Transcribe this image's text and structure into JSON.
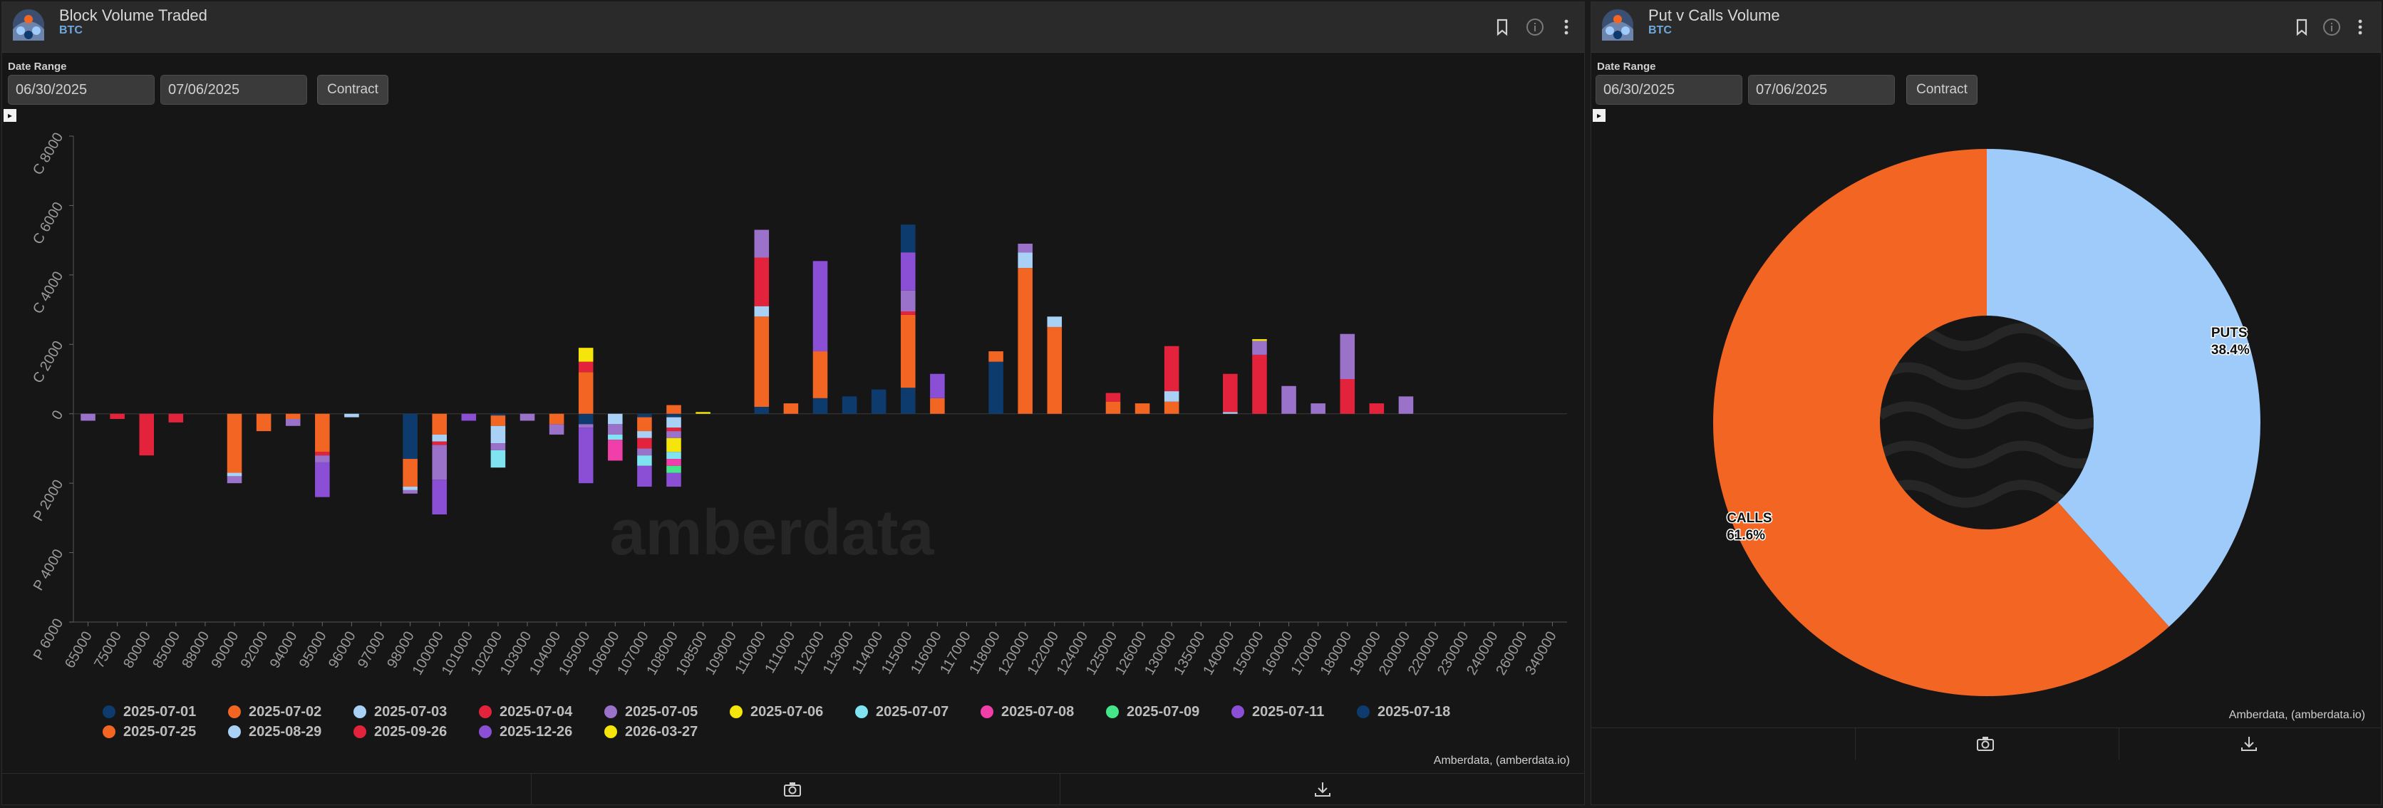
{
  "left_panel": {
    "title": "Block Volume Traded",
    "subtitle": "BTC",
    "date_range_label": "Date Range",
    "start_date": "06/30/2025",
    "end_date": "07/06/2025",
    "contract_button": "Contract",
    "credit": "Amberdata, (amberdata.io)",
    "watermark": "amberdata"
  },
  "right_panel": {
    "title": "Put v Calls Volume",
    "subtitle": "BTC",
    "date_range_label": "Date Range",
    "start_date": "06/30/2025",
    "end_date": "07/06/2025",
    "contract_button": "Contract",
    "credit": "Amberdata, (amberdata.io)"
  },
  "colors": {
    "header_bg": "#2a2a2a",
    "panel_bg": "#161616",
    "calls": "#f26522",
    "puts": "#9ecbfa",
    "accent_blue": "#6fa8dc"
  },
  "icons": [
    "amberdata-logo-icon",
    "bookmark-icon",
    "info-icon",
    "more-vert-icon",
    "camera-icon",
    "download-icon",
    "expand-icon"
  ],
  "chart_data": [
    {
      "type": "bar",
      "stacked": true,
      "title": "Block Volume Traded",
      "xlabel": "",
      "ylabel": "",
      "ylim": [
        -6000,
        8000
      ],
      "ytick_labels": [
        "P 6000",
        "P 4000",
        "P 2000",
        "0",
        "C 2000",
        "C 4000",
        "C 6000",
        "C 8000"
      ],
      "ytick_values": [
        -6000,
        -4000,
        -2000,
        0,
        2000,
        4000,
        6000,
        8000
      ],
      "categories": [
        "65000",
        "75000",
        "80000",
        "85000",
        "88000",
        "90000",
        "92000",
        "94000",
        "95000",
        "96000",
        "97000",
        "98000",
        "100000",
        "101000",
        "102000",
        "103000",
        "104000",
        "105000",
        "106000",
        "107000",
        "108000",
        "108500",
        "109000",
        "110000",
        "111000",
        "112000",
        "113000",
        "114000",
        "115000",
        "116000",
        "117000",
        "118000",
        "120000",
        "122000",
        "124000",
        "125000",
        "126000",
        "130000",
        "135000",
        "140000",
        "150000",
        "160000",
        "170000",
        "180000",
        "190000",
        "200000",
        "220000",
        "230000",
        "240000",
        "260000",
        "340000"
      ],
      "legend_position": "bottom",
      "series": [
        {
          "name": "2025-07-01",
          "color": "#0d3b6e",
          "values": [
            0,
            0,
            0,
            0,
            0,
            0,
            0,
            0,
            0,
            0,
            0,
            -1300,
            0,
            0,
            -50,
            0,
            0,
            -300,
            0,
            -100,
            -100,
            0,
            0,
            200,
            0,
            450,
            500,
            700,
            750,
            0,
            0,
            1500,
            0,
            0,
            0,
            0,
            0,
            0,
            0,
            0,
            0,
            0,
            0,
            0,
            0,
            0,
            0,
            0,
            0,
            0,
            0
          ]
        },
        {
          "name": "2025-07-02",
          "color": "#f26522",
          "values": [
            0,
            0,
            0,
            0,
            0,
            -1700,
            -500,
            -150,
            -1100,
            0,
            0,
            -800,
            -600,
            0,
            -300,
            0,
            -300,
            1200,
            0,
            -400,
            250,
            0,
            0,
            2600,
            0,
            1350,
            0,
            0,
            2100,
            450,
            0,
            300,
            4200,
            2500,
            0,
            350,
            300,
            350,
            0,
            0,
            0,
            0,
            0,
            0,
            0,
            0,
            0,
            0,
            0,
            0,
            0
          ]
        },
        {
          "name": "2025-07-03",
          "color": "#a9d0f5",
          "values": [
            0,
            0,
            0,
            0,
            0,
            -100,
            0,
            0,
            0,
            -100,
            0,
            -100,
            -200,
            0,
            -500,
            0,
            0,
            0,
            -300,
            -200,
            -300,
            0,
            0,
            300,
            0,
            0,
            0,
            0,
            0,
            0,
            0,
            0,
            450,
            300,
            0,
            0,
            0,
            300,
            0,
            50,
            0,
            0,
            0,
            0,
            0,
            0,
            0,
            0,
            0,
            0,
            0
          ]
        },
        {
          "name": "2025-07-04",
          "color": "#e3233b",
          "values": [
            0,
            -150,
            -1200,
            -250,
            0,
            0,
            0,
            0,
            -100,
            0,
            0,
            0,
            -100,
            0,
            0,
            0,
            0,
            300,
            0,
            -300,
            -100,
            0,
            0,
            1400,
            0,
            0,
            0,
            0,
            100,
            0,
            0,
            0,
            0,
            0,
            0,
            250,
            0,
            1300,
            0,
            1100,
            1700,
            0,
            0,
            1000,
            300,
            0,
            0,
            0,
            0,
            0,
            0
          ]
        },
        {
          "name": "2025-07-05",
          "color": "#9b72c9",
          "values": [
            -200,
            0,
            0,
            0,
            0,
            -200,
            0,
            -200,
            -200,
            0,
            0,
            -100,
            -1000,
            0,
            -200,
            -200,
            -300,
            -100,
            -300,
            -200,
            -200,
            0,
            0,
            800,
            0,
            0,
            0,
            0,
            600,
            0,
            0,
            0,
            250,
            0,
            0,
            0,
            0,
            0,
            0,
            0,
            400,
            800,
            300,
            1300,
            0,
            500,
            0,
            0,
            0,
            0,
            0
          ]
        },
        {
          "name": "2025-07-06",
          "color": "#f5e50a",
          "values": [
            0,
            0,
            0,
            0,
            0,
            0,
            0,
            0,
            0,
            0,
            0,
            0,
            0,
            0,
            0,
            0,
            0,
            400,
            0,
            0,
            -400,
            50,
            0,
            0,
            0,
            0,
            0,
            0,
            0,
            0,
            0,
            0,
            0,
            0,
            0,
            0,
            0,
            0,
            0,
            0,
            50,
            0,
            0,
            0,
            0,
            0,
            0,
            0,
            0,
            0,
            0
          ]
        },
        {
          "name": "2025-07-07",
          "color": "#7fe3f2",
          "values": [
            0,
            0,
            0,
            0,
            0,
            0,
            0,
            0,
            0,
            0,
            0,
            0,
            0,
            0,
            -500,
            0,
            0,
            0,
            -150,
            -300,
            -200,
            0,
            0,
            0,
            0,
            0,
            0,
            0,
            0,
            0,
            0,
            0,
            0,
            0,
            0,
            0,
            0,
            0,
            0,
            0,
            0,
            0,
            0,
            0,
            0,
            0,
            0,
            0,
            0,
            0,
            0
          ]
        },
        {
          "name": "2025-07-08",
          "color": "#f03fa9",
          "values": [
            0,
            0,
            0,
            0,
            0,
            0,
            0,
            0,
            0,
            0,
            0,
            0,
            0,
            0,
            0,
            0,
            0,
            0,
            -600,
            0,
            -200,
            0,
            0,
            0,
            0,
            0,
            0,
            0,
            0,
            0,
            0,
            0,
            0,
            0,
            0,
            0,
            0,
            0,
            0,
            0,
            0,
            0,
            0,
            0,
            0,
            0,
            0,
            0,
            0,
            0,
            0
          ]
        },
        {
          "name": "2025-07-09",
          "color": "#45e58a",
          "values": [
            0,
            0,
            0,
            0,
            0,
            0,
            0,
            0,
            0,
            0,
            0,
            0,
            0,
            0,
            0,
            0,
            0,
            0,
            0,
            0,
            -200,
            0,
            0,
            0,
            0,
            0,
            0,
            0,
            0,
            0,
            0,
            0,
            0,
            0,
            0,
            0,
            0,
            0,
            0,
            0,
            0,
            0,
            0,
            0,
            0,
            0,
            0,
            0,
            0,
            0,
            0
          ]
        },
        {
          "name": "2025-07-11",
          "color": "#8b4fd6",
          "values": [
            0,
            0,
            0,
            0,
            0,
            0,
            0,
            0,
            -1000,
            0,
            0,
            0,
            -1000,
            -200,
            0,
            0,
            0,
            -1600,
            0,
            -600,
            -400,
            0,
            0,
            0,
            0,
            2600,
            0,
            0,
            1100,
            700,
            0,
            0,
            0,
            0,
            0,
            0,
            0,
            0,
            0,
            0,
            0,
            0,
            0,
            0,
            0,
            0,
            0,
            0,
            0,
            0,
            0
          ]
        },
        {
          "name": "2025-07-18",
          "color": "#0d3b6e",
          "values": [
            0,
            0,
            0,
            0,
            0,
            0,
            0,
            0,
            0,
            0,
            0,
            0,
            0,
            0,
            0,
            0,
            0,
            0,
            0,
            0,
            0,
            0,
            0,
            0,
            0,
            0,
            0,
            0,
            800,
            0,
            0,
            0,
            0,
            0,
            0,
            0,
            0,
            0,
            0,
            0,
            0,
            0,
            0,
            0,
            0,
            0,
            0,
            0,
            0,
            0,
            0
          ]
        },
        {
          "name": "2025-07-25",
          "color": "#f26522",
          "values": [
            0,
            0,
            0,
            0,
            0,
            0,
            0,
            0,
            0,
            0,
            0,
            0,
            0,
            0,
            0,
            0,
            0,
            0,
            0,
            0,
            0,
            0,
            0,
            0,
            300,
            0,
            0,
            0,
            0,
            0,
            0,
            0,
            0,
            0,
            0,
            0,
            0,
            0,
            0,
            0,
            0,
            0,
            0,
            0,
            0,
            0,
            0,
            0,
            0,
            0,
            0
          ]
        },
        {
          "name": "2025-08-29",
          "color": "#a9d0f5",
          "values": [
            0,
            0,
            0,
            0,
            0,
            0,
            0,
            0,
            0,
            0,
            0,
            0,
            0,
            0,
            0,
            0,
            0,
            0,
            0,
            0,
            0,
            0,
            0,
            0,
            0,
            0,
            0,
            0,
            0,
            0,
            0,
            0,
            0,
            0,
            0,
            0,
            0,
            0,
            0,
            0,
            0,
            0,
            0,
            0,
            0,
            0,
            0,
            0,
            0,
            0,
            0
          ]
        },
        {
          "name": "2025-09-26",
          "color": "#e3233b",
          "values": [
            0,
            0,
            0,
            0,
            0,
            0,
            0,
            0,
            0,
            0,
            0,
            0,
            0,
            0,
            0,
            0,
            0,
            0,
            0,
            0,
            0,
            0,
            0,
            0,
            0,
            0,
            0,
            0,
            0,
            0,
            0,
            0,
            0,
            0,
            0,
            0,
            0,
            0,
            0,
            0,
            0,
            0,
            0,
            0,
            0,
            0,
            0,
            0,
            0,
            0,
            0
          ]
        },
        {
          "name": "2025-12-26",
          "color": "#8b4fd6",
          "values": [
            0,
            0,
            0,
            0,
            0,
            0,
            0,
            0,
            0,
            0,
            0,
            0,
            0,
            0,
            0,
            0,
            0,
            0,
            0,
            0,
            0,
            0,
            0,
            0,
            0,
            0,
            0,
            0,
            0,
            0,
            0,
            0,
            0,
            0,
            0,
            0,
            0,
            0,
            0,
            0,
            0,
            0,
            0,
            0,
            0,
            0,
            0,
            0,
            0,
            0,
            0
          ]
        },
        {
          "name": "2026-03-27",
          "color": "#f5e50a",
          "values": [
            0,
            0,
            0,
            0,
            0,
            0,
            0,
            0,
            0,
            0,
            0,
            0,
            0,
            0,
            0,
            0,
            0,
            0,
            0,
            0,
            0,
            0,
            0,
            0,
            0,
            0,
            0,
            0,
            0,
            0,
            0,
            0,
            0,
            0,
            0,
            0,
            0,
            0,
            0,
            0,
            0,
            0,
            0,
            0,
            0,
            0,
            0,
            0,
            0,
            0,
            0
          ]
        }
      ]
    },
    {
      "type": "pie",
      "donut": true,
      "title": "Put v Calls Volume",
      "labels": [
        "PUTS",
        "CALLS"
      ],
      "values": [
        38.4,
        61.6
      ],
      "value_labels": [
        "38.4%",
        "61.6%"
      ],
      "colors": [
        "#9ecbfa",
        "#f26522"
      ]
    }
  ]
}
